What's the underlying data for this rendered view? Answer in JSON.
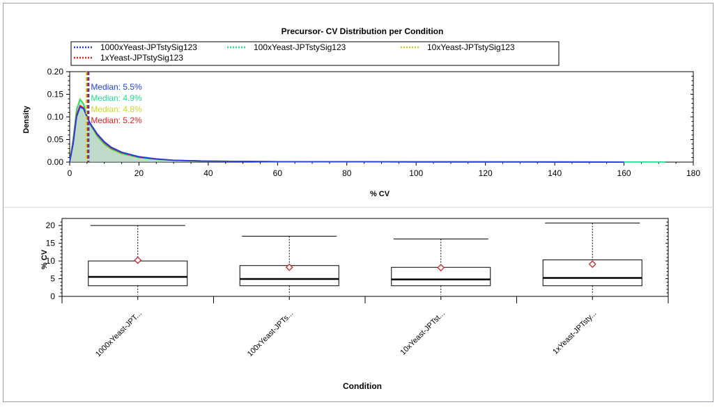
{
  "chart_data": [
    {
      "type": "line",
      "title": "Precursor- CV Distribution per Condition",
      "xlabel": "% CV",
      "ylabel": "Density",
      "xlim": [
        0,
        180
      ],
      "ylim": [
        0,
        0.2
      ],
      "xticks": [
        "0",
        "20",
        "40",
        "60",
        "80",
        "100",
        "120",
        "140",
        "160",
        "180"
      ],
      "yticks": [
        "0.00",
        "0.05",
        "0.10",
        "0.15",
        "0.20"
      ],
      "legend_position": "top",
      "series": [
        {
          "name": "1000xYeast-JPTstySig123",
          "color": "#1f3fe0",
          "median": 5.5,
          "median_label": "Median: 5.5%",
          "x": [
            0,
            1,
            2,
            3,
            4,
            5,
            6,
            8,
            10,
            12,
            15,
            20,
            25,
            30,
            40,
            60,
            100,
            140,
            160
          ],
          "y": [
            0,
            0.04,
            0.1,
            0.122,
            0.118,
            0.1,
            0.085,
            0.062,
            0.045,
            0.033,
            0.022,
            0.012,
            0.007,
            0.004,
            0.002,
            0.001,
            0.0005,
            0.0003,
            0.0002
          ]
        },
        {
          "name": "100xYeast-JPTstySig123",
          "color": "#22dd8c",
          "median": 4.9,
          "median_label": "Median: 4.9%",
          "x": [
            0,
            1,
            2,
            3,
            4,
            5,
            6,
            8,
            10,
            12,
            15,
            20,
            25,
            30,
            40,
            60,
            100,
            140,
            172
          ],
          "y": [
            0,
            0.05,
            0.115,
            0.138,
            0.128,
            0.103,
            0.082,
            0.057,
            0.04,
            0.029,
            0.019,
            0.01,
            0.006,
            0.004,
            0.002,
            0.001,
            0.0005,
            0.0003,
            0.0002
          ]
        },
        {
          "name": "10xYeast-JPTstySig123",
          "color": "#c7d82a",
          "median": 4.8,
          "median_label": "Median: 4.8%",
          "x": [
            0,
            1,
            2,
            3,
            4,
            5,
            6,
            8,
            10,
            12,
            15,
            20,
            25,
            30,
            40,
            60,
            100,
            140,
            160
          ],
          "y": [
            0,
            0.052,
            0.118,
            0.14,
            0.13,
            0.104,
            0.082,
            0.056,
            0.039,
            0.028,
            0.018,
            0.01,
            0.006,
            0.004,
            0.002,
            0.001,
            0.0005,
            0.0003,
            0.0002
          ]
        },
        {
          "name": "1xYeast-JPTstySig123",
          "color": "#e02020",
          "median": 5.2,
          "median_label": "Median: 5.2%",
          "x": [
            0,
            1,
            2,
            3,
            4,
            5,
            6,
            8,
            10,
            12,
            15,
            20,
            25,
            30,
            40,
            60,
            100,
            140,
            160
          ],
          "y": [
            0,
            0.045,
            0.105,
            0.125,
            0.12,
            0.1,
            0.084,
            0.06,
            0.043,
            0.031,
            0.021,
            0.011,
            0.007,
            0.004,
            0.002,
            0.001,
            0.0005,
            0.0003,
            0.0002
          ]
        }
      ]
    },
    {
      "type": "box",
      "xlabel": "Condition",
      "ylabel": "% CV",
      "ylim": [
        0,
        22
      ],
      "yticks": [
        "0",
        "5",
        "10",
        "15",
        "20"
      ],
      "categories": [
        "1000xYeast-JPT...",
        "100xYeast-JPTs...",
        "10xYeast-JPTst...",
        "1xYeast-JPTsty..."
      ],
      "boxes": [
        {
          "q1": 3,
          "median": 5.5,
          "q3": 10,
          "whisker_low": 0.5,
          "whisker_high": 20,
          "mean": 10.2
        },
        {
          "q1": 3,
          "median": 4.9,
          "q3": 8.7,
          "whisker_low": 0.5,
          "whisker_high": 17,
          "mean": 8.2
        },
        {
          "q1": 3,
          "median": 4.8,
          "q3": 8.2,
          "whisker_low": 0.5,
          "whisker_high": 16.2,
          "mean": 8.1
        },
        {
          "q1": 3,
          "median": 5.2,
          "q3": 10.3,
          "whisker_low": 0.5,
          "whisker_high": 20.7,
          "mean": 9.1
        }
      ],
      "mean_marker_color": "#c0282d"
    }
  ]
}
